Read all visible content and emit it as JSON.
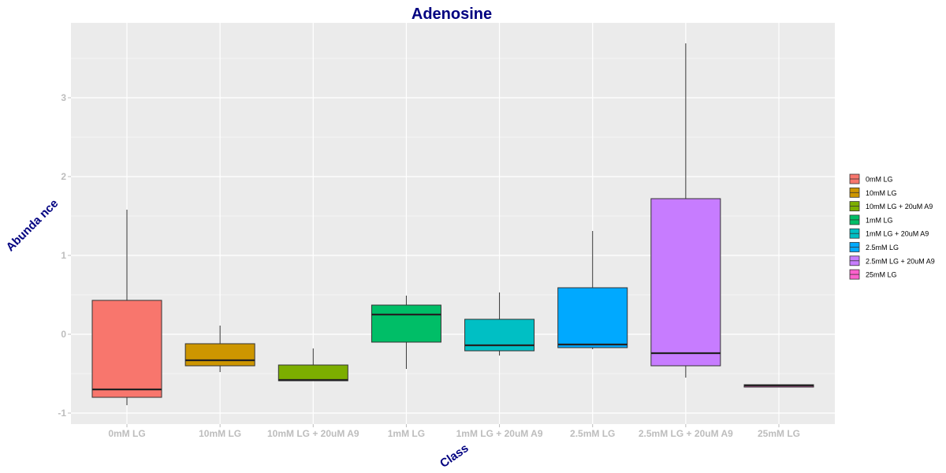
{
  "chart_data": {
    "type": "box",
    "title": "Adenosine",
    "xlabel": "Class",
    "ylabel": "Abunda nce",
    "ylim": [
      -1.15,
      3.95
    ],
    "yticks": [
      "-1",
      "0",
      "1",
      "2",
      "3"
    ],
    "ytick_values": [
      -1,
      0,
      1,
      2,
      3
    ],
    "grid": true,
    "legend_position": "right",
    "categories": [
      "0mM LG",
      "10mM LG",
      "10mM LG + 20uM A9",
      "1mM LG",
      "1mM LG + 20uM A9",
      "2.5mM LG",
      "2.5mM LG + 20uM A9",
      "25mM LG"
    ],
    "series": [
      {
        "name": "0mM LG",
        "color": "#F8766D",
        "min": -0.9,
        "q1": -0.8,
        "median": -0.7,
        "q3": 0.43,
        "max": 1.58
      },
      {
        "name": "10mM LG",
        "color": "#CD9600",
        "min": -0.48,
        "q1": -0.4,
        "median": -0.33,
        "q3": -0.12,
        "max": 0.11
      },
      {
        "name": "10mM LG + 20uM A9",
        "color": "#7CAE00",
        "min": -0.59,
        "q1": -0.59,
        "median": -0.58,
        "q3": -0.39,
        "max": -0.18
      },
      {
        "name": "1mM LG",
        "color": "#00BE67",
        "min": -0.44,
        "q1": -0.1,
        "median": 0.25,
        "q3": 0.37,
        "max": 0.49
      },
      {
        "name": "1mM LG + 20uM A9",
        "color": "#00BFC4",
        "min": -0.27,
        "q1": -0.21,
        "median": -0.14,
        "q3": 0.19,
        "max": 0.53
      },
      {
        "name": "2.5mM LG",
        "color": "#00A9FF",
        "min": -0.19,
        "q1": -0.17,
        "median": -0.13,
        "q3": 0.59,
        "max": 1.31
      },
      {
        "name": "2.5mM LG + 20uM A9",
        "color": "#C77CFF",
        "min": -0.55,
        "q1": -0.4,
        "median": -0.24,
        "q3": 1.72,
        "max": 3.69
      },
      {
        "name": "25mM LG",
        "color": "#FF61CC",
        "min": -0.67,
        "q1": -0.67,
        "median": -0.65,
        "q3": -0.64,
        "max": -0.64
      }
    ]
  }
}
